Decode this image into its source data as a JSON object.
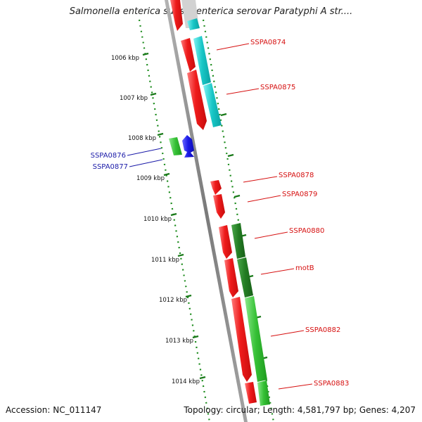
{
  "title": "Salmonella enterica subsp. enterica serovar Paratyphi A str....",
  "footer": {
    "accession": "Accession: NC_011147",
    "summary": "Topology: circular; Length: 4,581,797 bp; Genes: 4,207"
  },
  "colors": {
    "forward_gene": "#e8121b",
    "forward_gene_light": "#ff6a6a",
    "cds_teal": "#15c8c8",
    "cds_green": "#2db52d",
    "cds_darkgreen": "#1f7a1f",
    "reverse_gene": "#1616e0",
    "tick_green": "#1a8a1a",
    "label_red": "#d61010",
    "label_blue": "#1a1aa8",
    "backbone": "#8c8c8c"
  },
  "kbp_marks": [
    "1006 kbp",
    "1007 kbp",
    "1008 kbp",
    "1009 kbp",
    "1010 kbp",
    "1011 kbp",
    "1012 kbp",
    "1013 kbp",
    "1014 kbp"
  ],
  "gene_labels": [
    {
      "name": "SSPA0874",
      "strand": "forward"
    },
    {
      "name": "SSPA0875",
      "strand": "forward"
    },
    {
      "name": "SSPA0876",
      "strand": "reverse"
    },
    {
      "name": "SSPA0877",
      "strand": "reverse"
    },
    {
      "name": "SSPA0878",
      "strand": "forward"
    },
    {
      "name": "SSPA0879",
      "strand": "forward"
    },
    {
      "name": "SSPA0880",
      "strand": "forward"
    },
    {
      "name": "motB",
      "strand": "forward"
    },
    {
      "name": "SSPA0882",
      "strand": "forward"
    },
    {
      "name": "SSPA0883",
      "strand": "forward"
    }
  ]
}
